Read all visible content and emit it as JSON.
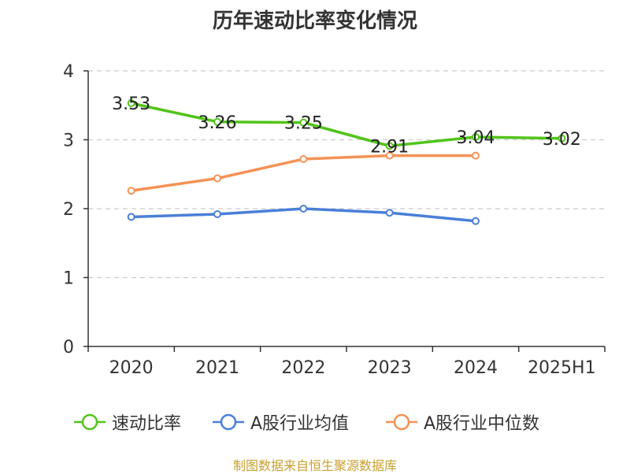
{
  "chart_data": {
    "type": "line",
    "title": "历年速动比率变化情况",
    "categories": [
      "2020",
      "2021",
      "2022",
      "2023",
      "2024",
      "2025H1"
    ],
    "yticks": [
      "0",
      "1",
      "2",
      "3",
      "4"
    ],
    "ylim": [
      0,
      4
    ],
    "grid": true,
    "legend_position": "bottom",
    "series": [
      {
        "name": "速动比率",
        "color": "#52c41a",
        "values": [
          3.53,
          3.26,
          3.25,
          2.91,
          3.04,
          3.02
        ],
        "labels": [
          "3.53",
          "3.26",
          "3.25",
          "2.91",
          "3.04",
          "3.02"
        ]
      },
      {
        "name": "A股行业均值",
        "color": "#4a7fd8",
        "values": [
          1.88,
          1.92,
          2.0,
          1.94,
          1.82,
          null
        ]
      },
      {
        "name": "A股行业中位数",
        "color": "#f59255",
        "values": [
          2.26,
          2.44,
          2.72,
          2.77,
          2.77,
          null
        ]
      }
    ]
  },
  "footer": {
    "source": "制图数据来自恒生聚源数据库"
  }
}
